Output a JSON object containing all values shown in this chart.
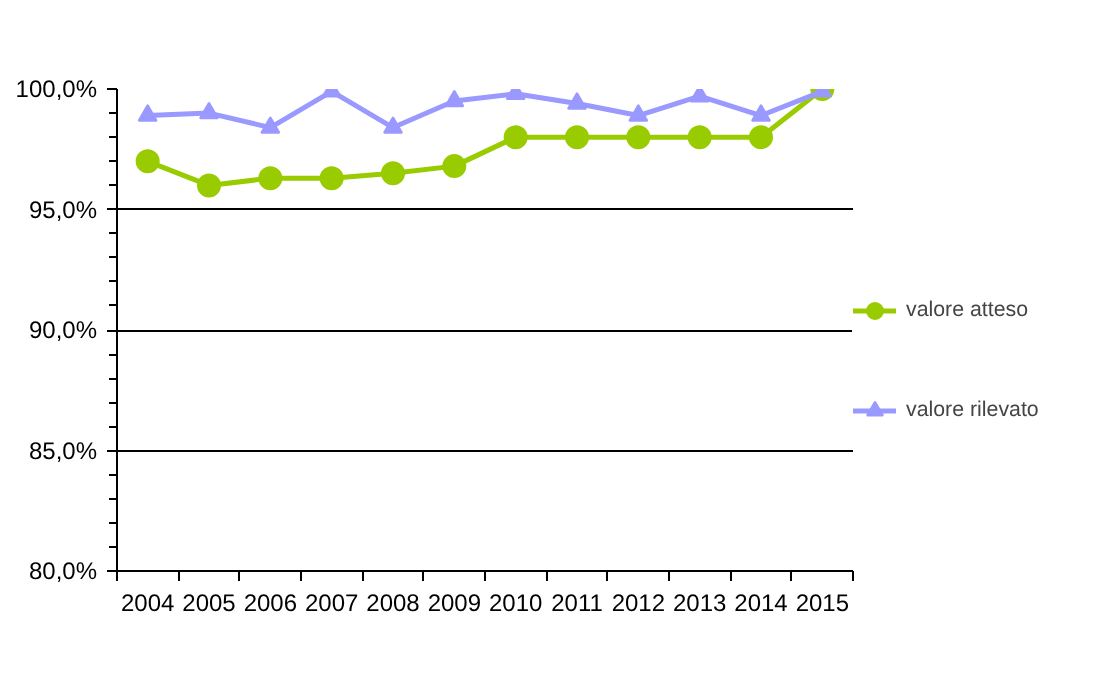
{
  "chart_data": {
    "type": "line",
    "categories": [
      "2004",
      "2005",
      "2006",
      "2007",
      "2008",
      "2009",
      "2010",
      "2011",
      "2012",
      "2013",
      "2014",
      "2015"
    ],
    "series": [
      {
        "name": "valore atteso",
        "color": "#99cc00",
        "marker": "circle",
        "values": [
          97.0,
          96.0,
          96.3,
          96.3,
          96.5,
          96.8,
          98.0,
          98.0,
          98.0,
          98.0,
          98.0,
          100.0
        ]
      },
      {
        "name": "valore rilevato",
        "color": "#9999ff",
        "marker": "triangle",
        "values": [
          98.9,
          99.0,
          98.4,
          99.9,
          98.4,
          99.5,
          99.8,
          99.4,
          98.9,
          99.7,
          98.9,
          99.9
        ]
      }
    ],
    "ylim": [
      80,
      100
    ],
    "yticks": [
      {
        "value": 80,
        "label": "80,0%"
      },
      {
        "value": 85,
        "label": "85,0%"
      },
      {
        "value": 90,
        "label": "90,0%"
      },
      {
        "value": 95,
        "label": "95,0%"
      },
      {
        "value": 100,
        "label": "100,0%"
      }
    ],
    "grid": "y",
    "legend": "right",
    "line_style": "solid"
  }
}
